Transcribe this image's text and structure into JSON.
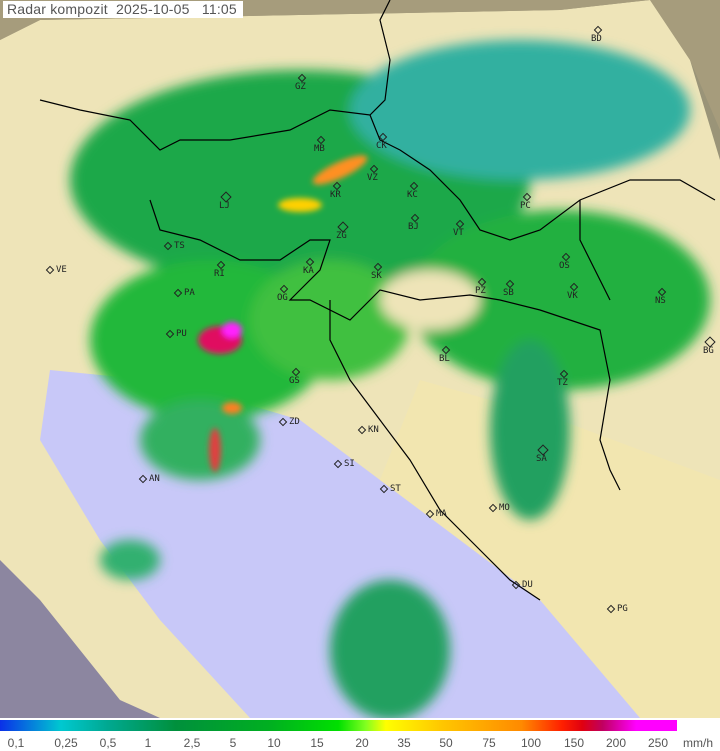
{
  "title": "Radar kompozit  2025-10-05   11:05",
  "cities": [
    "BD",
    "GZ",
    "MB",
    "CK",
    "VZ",
    "KR",
    "KC",
    "LJ",
    "ZG",
    "BJ",
    "VT",
    "PC",
    "TS",
    "VE",
    "RI",
    "KA",
    "SK",
    "OS",
    "PA",
    "OG",
    "PZ",
    "SB",
    "VK",
    "NS",
    "PU",
    "BL",
    "BG",
    "GS",
    "TZ",
    "ZD",
    "KN",
    "AN",
    "SI",
    "SA",
    "ST",
    "MA",
    "MO",
    "DU",
    "PG"
  ],
  "legend": {
    "ticks": [
      "0,1",
      "0,25",
      "0,5",
      "1",
      "2,5",
      "5",
      "10",
      "15",
      "20",
      "35",
      "50",
      "75",
      "100",
      "150",
      "200",
      "250"
    ],
    "unit": "mm/h",
    "colors": {
      "low": "#0a30e8",
      "mid": "#00b020",
      "high": "#ff00ff"
    }
  },
  "colors": {
    "sea": "#c8c8f8",
    "land": "#f0e6b4",
    "terrain": "#9a9478",
    "border": "#000000"
  }
}
